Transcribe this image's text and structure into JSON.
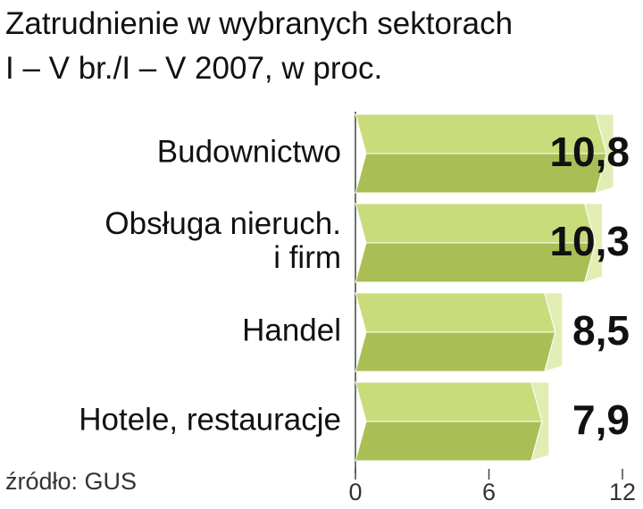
{
  "chart_data": {
    "type": "bar",
    "orientation": "horizontal",
    "title": "Zatrudnienie w wybranych sektorach",
    "subtitle": "I – V br./I – V 2007, w proc.",
    "categories": [
      "Budownictwo",
      "Obsługa nieruch.\ni firm",
      "Handel",
      "Hotele, restauracje"
    ],
    "values": [
      10.8,
      10.3,
      8.5,
      7.9
    ],
    "value_labels": [
      "10,8",
      "10,3",
      "8,5",
      "7,9"
    ],
    "color": "#c9dc7c",
    "xlim": [
      0,
      12
    ],
    "xticks": [
      0,
      6,
      12
    ],
    "source": "źródło: GUS"
  }
}
